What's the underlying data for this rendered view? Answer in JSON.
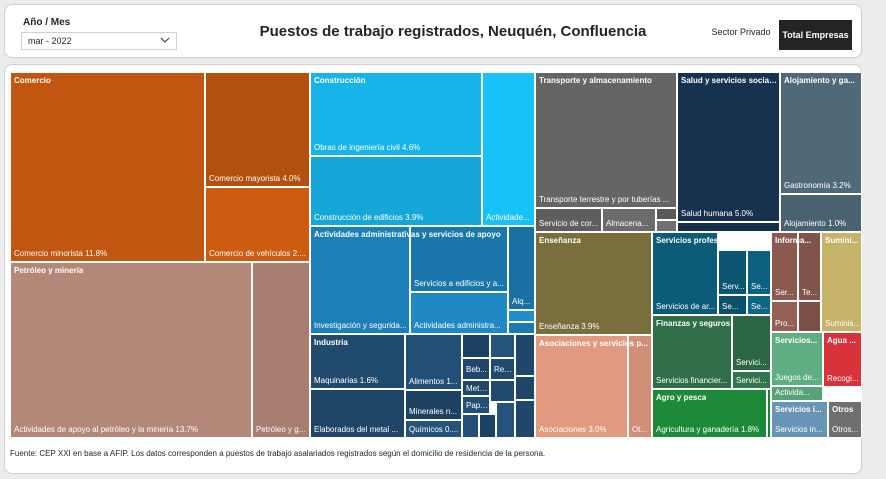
{
  "filter": {
    "label": "Año / Mes",
    "value": "mar - 2022"
  },
  "title": "Puestos de trabajo registrados, Neuquén, Confluencia",
  "toggle": {
    "private_label": "Sector Privado",
    "total_label": "Total Empresas"
  },
  "footnote": "Fuente: CEP XXI en base a AFIP. Los datos corresponden a puestos de trabajo asalariados registrados según el domicilio de residencia de la persona.",
  "chart_data": {
    "type": "treemap",
    "value_unit": "%",
    "groups": [
      {
        "name": "Comercio",
        "color": "#c0560f",
        "children": [
          {
            "name": "Comercio minorista",
            "label": "Comercio minorista 11.8%",
            "value": 11.8
          },
          {
            "name": "Comercio mayorista",
            "label": "Comercio mayorista 4.0%",
            "value": 4.0
          },
          {
            "name": "Comercio de vehículos",
            "label": "Comercio de vehículos 2...."
          }
        ]
      },
      {
        "name": "Petróleo y minería",
        "color": "#b48878",
        "children": [
          {
            "name": "Actividades de apoyo al petróleo y la minería",
            "label": "Actividades de apoyo al petróleo y la minería 13.7%",
            "value": 13.7
          },
          {
            "name": "Petróleo y gas",
            "label": "Petróleo y g..."
          }
        ]
      },
      {
        "name": "Construcción",
        "color": "#16b4e8",
        "children": [
          {
            "name": "Obras de ingeniería civil",
            "label": "Obras de ingeniería civil 4.6%",
            "value": 4.6
          },
          {
            "name": "Construcción de edificios",
            "label": "Construcción de edificios 3.9%",
            "value": 3.9
          },
          {
            "name": "Actividades especializadas",
            "label": "Actividade..."
          }
        ]
      },
      {
        "name": "Actividades administrativas y servicios de apoyo",
        "color": "#1d7fb8",
        "children": [
          {
            "name": "Investigación y seguridad",
            "label": "Investigación y segurida..."
          },
          {
            "name": "Servicios a edificios",
            "label": "Servicios a edificios y a..."
          },
          {
            "name": "Actividades administrativas",
            "label": "Actividades administra..."
          },
          {
            "name": "Alq",
            "label": "Alq..."
          },
          {
            "name": "Otros 1",
            "label": ""
          },
          {
            "name": "Otros 2",
            "label": ""
          }
        ]
      },
      {
        "name": "Industria",
        "color": "#214a6f",
        "children": [
          {
            "name": "Maquinarias",
            "label": "Maquinarias 1.6%",
            "value": 1.6
          },
          {
            "name": "Elaborados del metal",
            "label": "Elaborados del metal ..."
          },
          {
            "name": "Alimentos",
            "label": "Alimentos 1..."
          },
          {
            "name": "Minerales no metálicos",
            "label": "Minerales n..."
          },
          {
            "name": "Químicos",
            "label": "Químicos 0...."
          },
          {
            "name": "Bebidas",
            "label": "Beb..."
          },
          {
            "name": "Reparación",
            "label": "Rep..."
          },
          {
            "name": "Metales",
            "label": "Meta..."
          },
          {
            "name": "Papel",
            "label": "Pape..."
          },
          {
            "name": "i1",
            "label": ""
          },
          {
            "name": "i2",
            "label": ""
          },
          {
            "name": "i3",
            "label": ""
          },
          {
            "name": "i4",
            "label": ""
          },
          {
            "name": "i5",
            "label": ""
          },
          {
            "name": "i6",
            "label": ""
          },
          {
            "name": "i7",
            "label": ""
          },
          {
            "name": "i8",
            "label": ""
          },
          {
            "name": "i9",
            "label": ""
          }
        ]
      },
      {
        "name": "Transporte y almacenamiento",
        "color": "#656565",
        "children": [
          {
            "name": "Transporte terrestre y por tuberías",
            "label": "Transporte terrestre y por tuberías ..."
          },
          {
            "name": "Servicio de correo",
            "label": "Servicio de cor..."
          },
          {
            "name": "Almacenamiento",
            "label": "Almacena..."
          },
          {
            "name": "t1",
            "label": ""
          },
          {
            "name": "t2",
            "label": ""
          }
        ]
      },
      {
        "name": "Enseñanza",
        "color": "#7a6e3c",
        "children": [
          {
            "name": "Enseñanza",
            "label": "Enseñanza 3.9%",
            "value": 3.9
          }
        ]
      },
      {
        "name": "Asociaciones y servicios personales",
        "color": "#e19a80",
        "children": [
          {
            "name": "Asociaciones",
            "label": "Asociaciones 3.0%",
            "value": 3.0
          },
          {
            "name": "Otros servicios",
            "label": "Ot..."
          }
        ]
      },
      {
        "name": "Salud y servicios sociales",
        "color": "#17324f",
        "children": [
          {
            "name": "Salud humana",
            "label": "Salud humana 5.0%",
            "value": 5.0
          },
          {
            "name": "s1",
            "label": ""
          }
        ]
      },
      {
        "name": "Alojamiento y gastronomía",
        "color": "#4f6978",
        "children": [
          {
            "name": "Gastronomía",
            "label": "Gastronomía 3.2%",
            "value": 3.2
          },
          {
            "name": "Alojamiento",
            "label": "Alojamiento 1.0%",
            "value": 1.0
          }
        ]
      },
      {
        "name": "Servicios profesionales, científicos y técnicos",
        "color": "#0c5b78",
        "children": [
          {
            "name": "Servicios de arquitectura",
            "label": "Servicios de ar..."
          },
          {
            "name": "Serv 1",
            "label": "Serv..."
          },
          {
            "name": "Se 1",
            "label": "Se..."
          },
          {
            "name": "Se 2",
            "label": "Se..."
          },
          {
            "name": "Se 3",
            "label": "Se..."
          }
        ]
      },
      {
        "name": "Finanzas y seguros",
        "color": "#2f6e49",
        "children": [
          {
            "name": "Servicios financieros",
            "label": "Servicios financier..."
          },
          {
            "name": "Servicios 2",
            "label": "Servici..."
          },
          {
            "name": "Servicios 3",
            "label": "Servici..."
          }
        ]
      },
      {
        "name": "Agro y pesca",
        "color": "#1d8a3a",
        "children": [
          {
            "name": "Agricultura y ganadería",
            "label": "Agricultura y ganadería 1.8%",
            "value": 1.8
          },
          {
            "name": "a1",
            "label": ""
          }
        ]
      },
      {
        "name": "Información y comunicaciones",
        "color": "#8a5a50",
        "children": [
          {
            "name": "Servicios de información",
            "label": "Ser..."
          },
          {
            "name": "Telecomunicaciones",
            "label": "Te..."
          },
          {
            "name": "Producción audiovisual",
            "label": "Pro..."
          },
          {
            "name": "c1",
            "label": ""
          }
        ]
      },
      {
        "name": "Suministro de electricidad y gas",
        "color": "#c5b36a",
        "children": [
          {
            "name": "Suministro",
            "label": "Suminis..."
          }
        ]
      },
      {
        "name": "Servicios inmobiliarios",
        "color": "#5fae83",
        "children": [
          {
            "name": "Juegos de azar",
            "label": "Juegos de..."
          },
          {
            "name": "Actividades",
            "label": "Activida..."
          }
        ]
      },
      {
        "name": "Agua y saneamiento",
        "color": "#d8323a",
        "children": [
          {
            "name": "Recolección",
            "label": "Recogi..."
          }
        ]
      },
      {
        "name": "Servicios inmobiliarios 2",
        "color": "#6895b5",
        "children": [
          {
            "name": "Servicios inmobiliarios",
            "label": "Servicios in..."
          }
        ]
      },
      {
        "name": "Otros",
        "color": "#6f6f6f",
        "children": [
          {
            "name": "Otros",
            "label": "Otros..."
          }
        ]
      }
    ],
    "group_labels": {
      "Comercio": "Comercio",
      "Petróleo y minería": "Petróleo y minería",
      "Construcción": "Construcción",
      "Actividades administrativas y servicios de apoyo": "Actividades administrativas y servicios de apoyo",
      "Industria": "Industria",
      "Transporte y almacenamiento": "Transporte y almacenamiento",
      "Enseñanza": "Enseñanza",
      "Asociaciones y servicios personales": "Asociaciones y servicios p...",
      "Salud y servicios sociales": "Salud y servicios sociales",
      "Alojamiento y gastronomía": "Alojamiento y ga...",
      "Servicios profesionales, científicos y técnicos": "Servicios profesionales, cie...",
      "Finanzas y seguros": "Finanzas y seguros",
      "Agro y pesca": "Agro y pesca",
      "Información y comunicaciones": "Informa...",
      "Suministro de electricidad y gas": "Sumini...",
      "Servicios inmobiliarios": "Servicios...",
      "Agua y saneamiento": "Agua ...",
      "Servicios inmobiliarios 2": "Servicios i...",
      "Otros": "Otros"
    }
  }
}
